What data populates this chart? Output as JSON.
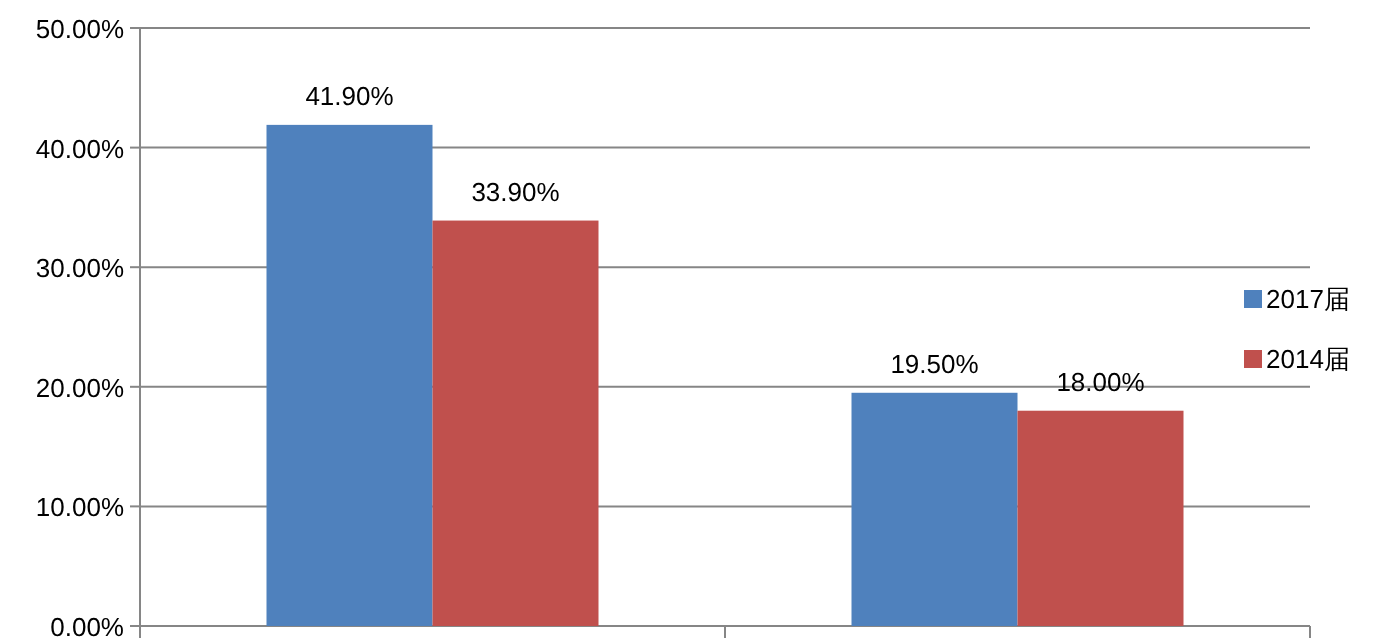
{
  "chart_data": {
    "type": "bar",
    "categories": [
      null,
      null
    ],
    "series": [
      {
        "name": "2017届",
        "color": "#4f81bd",
        "values": [
          41.9,
          19.5
        ],
        "value_labels": [
          "41.90%",
          "19.50%"
        ]
      },
      {
        "name": "2014届",
        "color": "#c0504d",
        "values": [
          33.9,
          18.0
        ],
        "value_labels": [
          "33.90%",
          "18.00%"
        ]
      }
    ],
    "ylim": [
      0,
      50
    ],
    "yticks": [
      {
        "value": 0,
        "label": "0.00%"
      },
      {
        "value": 10,
        "label": "10.00%"
      },
      {
        "value": 20,
        "label": "20.00%"
      },
      {
        "value": 30,
        "label": "30.00%"
      },
      {
        "value": 40,
        "label": "40.00%"
      },
      {
        "value": 50,
        "label": "50.00%"
      }
    ],
    "grid": "y",
    "legend": "right"
  }
}
